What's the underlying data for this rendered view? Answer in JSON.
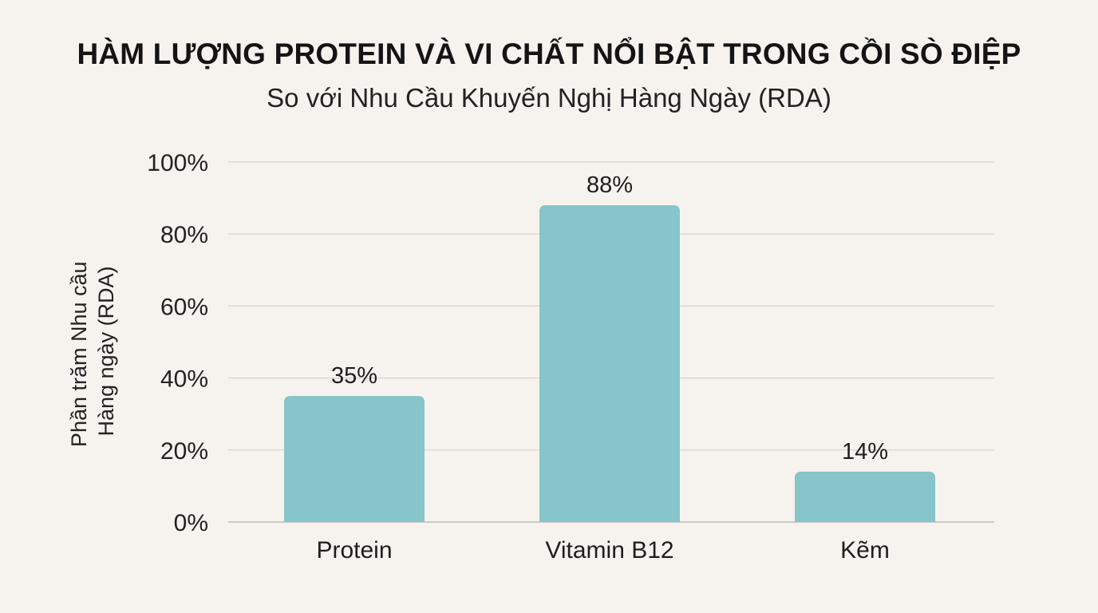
{
  "chart_data": {
    "type": "bar",
    "title": "HÀM LƯỢNG PROTEIN VÀ VI CHẤT NỔI BẬT TRONG CỒI SÒ ĐIỆP",
    "subtitle": "So với Nhu Cầu Khuyến Nghị Hàng Ngày (RDA)",
    "ylabel_lines": [
      "Phần trăm Nhu cầu",
      "Hàng ngày (RDA)"
    ],
    "xlabel": "",
    "categories": [
      "Protein",
      "Vitamin B12",
      "Kẽm"
    ],
    "values": [
      35,
      88,
      14
    ],
    "value_labels": [
      "35%",
      "88%",
      "14%"
    ],
    "ylim": [
      0,
      100
    ],
    "yticks": [
      0,
      20,
      40,
      60,
      80,
      100
    ],
    "ytick_labels": [
      "0%",
      "20%",
      "40%",
      "60%",
      "80%",
      "100%"
    ],
    "grid": true,
    "legend": "none",
    "colors": {
      "bar": "#86c5c9",
      "grid": "#d6d3ce",
      "baseline": "#bdbab5",
      "background": "#f6f3ee"
    }
  }
}
